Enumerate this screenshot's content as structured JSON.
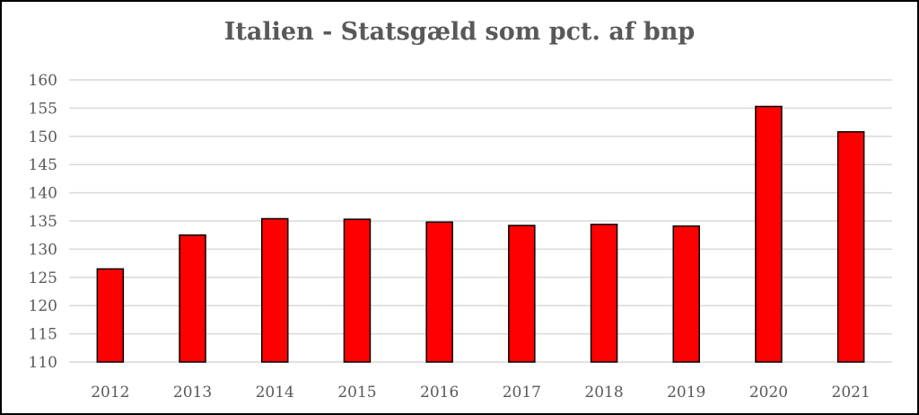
{
  "chart_data": {
    "type": "bar",
    "title": "Italien - Statsgæld som pct. af bnp",
    "xlabel": "",
    "ylabel": "",
    "categories": [
      "2012",
      "2013",
      "2014",
      "2015",
      "2016",
      "2017",
      "2018",
      "2019",
      "2020",
      "2021"
    ],
    "values": [
      126.5,
      132.5,
      135.4,
      135.3,
      134.8,
      134.2,
      134.4,
      134.1,
      155.3,
      150.8
    ],
    "ylim": [
      110,
      160
    ],
    "yticks": [
      "110",
      "115",
      "120",
      "125",
      "130",
      "135",
      "140",
      "145",
      "150",
      "155",
      "160"
    ],
    "grid": true,
    "legend": "none",
    "bar_color": "#ff0000",
    "bar_border_color": "#000000",
    "grid_color": "#d9d9d9"
  }
}
